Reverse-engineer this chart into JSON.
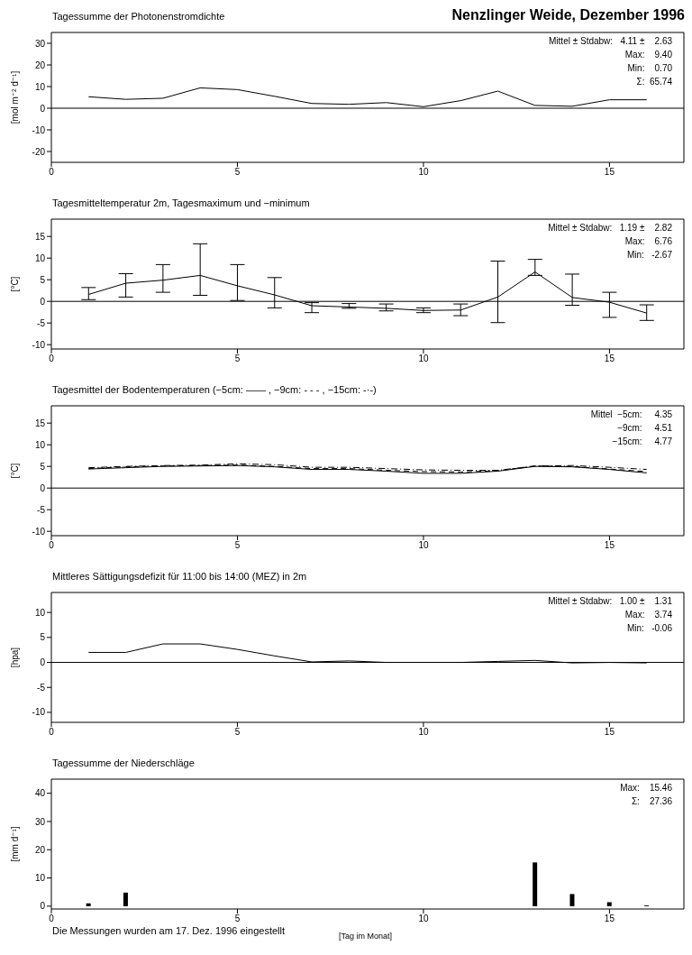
{
  "chart_data": [
    {
      "type": "line",
      "title": "Nenzlinger Weide, Dezember 1996",
      "subtitle": "Tagessumme der Photonenstromdichte",
      "ylabel": "[mol m⁻² d⁻¹]",
      "x": [
        1,
        2,
        3,
        4,
        5,
        6,
        7,
        8,
        9,
        10,
        11,
        12,
        13,
        14,
        15,
        16
      ],
      "series": [
        {
          "color": "#000000",
          "values": [
            5.3,
            4.1,
            4.6,
            9.4,
            8.6,
            5.5,
            2.2,
            1.8,
            2.6,
            0.7,
            3.5,
            7.9,
            1.3,
            0.9,
            3.9,
            3.9
          ]
        }
      ],
      "xlim": [
        0,
        17
      ],
      "xticks": [
        0,
        5,
        10,
        15
      ],
      "ylim": [
        -25,
        35
      ],
      "yticks": [
        -20,
        -10,
        0,
        10,
        20,
        30
      ],
      "ref_lines": [
        {
          "axis": "y",
          "value": 0,
          "color": "#000000"
        }
      ],
      "annotations": [
        "Mittel ± Stdabw:   4.11 ±    2.63",
        "Max:    9.40",
        "Min:    0.70",
        "Σ:  65.74"
      ]
    },
    {
      "type": "line",
      "title": "Tagesmitteltemperatur 2m, Tagesmaximum und −minimum",
      "ylabel": "[°C]",
      "x": [
        1,
        2,
        3,
        4,
        5,
        6,
        7,
        8,
        9,
        10,
        11,
        12,
        13,
        14,
        15,
        16
      ],
      "series": [
        {
          "color": "#000000",
          "values": [
            1.6,
            4.2,
            4.9,
            6.0,
            3.6,
            1.5,
            -1.0,
            -1.3,
            -1.6,
            -2.1,
            -2.0,
            1.0,
            6.8,
            0.9,
            -0.2,
            -2.7
          ],
          "errors": [
            [
              0.4,
              3.2
            ],
            [
              1.0,
              6.4
            ],
            [
              2.1,
              8.5
            ],
            [
              1.4,
              13.3
            ],
            [
              0.2,
              8.5
            ],
            [
              -1.5,
              5.5
            ],
            [
              -2.6,
              -0.3
            ],
            [
              -1.6,
              -0.5
            ],
            [
              -2.2,
              -0.6
            ],
            [
              -2.6,
              -1.5
            ],
            [
              -3.3,
              -0.6
            ],
            [
              -4.9,
              9.3
            ],
            [
              6.0,
              9.7
            ],
            [
              -0.9,
              6.3
            ],
            [
              -3.7,
              2.1
            ],
            [
              -4.4,
              -0.8
            ]
          ]
        }
      ],
      "xlim": [
        0,
        17
      ],
      "xticks": [
        0,
        5,
        10,
        15
      ],
      "ylim": [
        -11,
        19
      ],
      "yticks": [
        -10,
        -5,
        0,
        5,
        10,
        15
      ],
      "ref_lines": [
        {
          "axis": "y",
          "value": 0,
          "color": "#000000"
        }
      ],
      "annotations": [
        "Mittel ± Stdabw:   1.19 ±    2.82",
        "Max:    6.76",
        "Min:   -2.67"
      ]
    },
    {
      "type": "line",
      "title": "Tagesmittel der Bodentemperaturen (−5cm: —— , −9cm: - - - , −15cm: -·-)",
      "ylabel": "[°C]",
      "x": [
        1,
        2,
        3,
        4,
        5,
        6,
        7,
        8,
        9,
        10,
        11,
        12,
        13,
        14,
        15,
        16
      ],
      "series": [
        {
          "color": "#000000",
          "line_style": "solid",
          "values": [
            4.4,
            4.7,
            5.0,
            5.1,
            5.2,
            4.9,
            4.3,
            4.3,
            3.9,
            3.4,
            3.4,
            3.9,
            5.0,
            4.9,
            4.3,
            3.5
          ]
        },
        {
          "color": "#000000",
          "line_style": "dashed",
          "values": [
            4.5,
            4.9,
            5.1,
            5.2,
            5.3,
            5.0,
            4.5,
            4.5,
            4.1,
            3.8,
            3.7,
            4.0,
            5.1,
            5.0,
            4.4,
            3.8
          ]
        },
        {
          "color": "#000000",
          "line_style": "dashdot",
          "values": [
            4.7,
            5.0,
            5.2,
            5.3,
            5.6,
            5.4,
            4.8,
            4.8,
            4.5,
            4.2,
            4.1,
            4.1,
            5.1,
            5.2,
            4.8,
            4.3
          ]
        }
      ],
      "xlim": [
        0,
        17
      ],
      "xticks": [
        0,
        5,
        10,
        15
      ],
      "ylim": [
        -11,
        19
      ],
      "yticks": [
        -10,
        -5,
        0,
        5,
        10,
        15
      ],
      "ref_lines": [
        {
          "axis": "y",
          "value": 0,
          "color": "#000000"
        }
      ],
      "annotations": [
        "Mittel  −5cm:     4.35",
        "−9cm:     4.51",
        "−15cm:     4.77"
      ]
    },
    {
      "type": "line",
      "title": "Mittleres Sättigungsdefizit für 11:00 bis 14:00 (MEZ) in 2m",
      "ylabel": "[hpa]",
      "x": [
        1,
        2,
        3,
        4,
        5,
        6,
        7,
        8,
        9,
        10,
        11,
        12,
        13,
        14,
        15,
        16
      ],
      "series": [
        {
          "color": "#000000",
          "values": [
            2.0,
            2.0,
            3.7,
            3.7,
            2.6,
            1.3,
            0.1,
            0.3,
            0.0,
            0.0,
            0.0,
            0.2,
            0.4,
            -0.1,
            0.0,
            -0.1
          ]
        }
      ],
      "xlim": [
        0,
        17
      ],
      "xticks": [
        0,
        5,
        10,
        15
      ],
      "ylim": [
        -12,
        14
      ],
      "yticks": [
        -10,
        -5,
        0,
        5,
        10
      ],
      "ref_lines": [
        {
          "axis": "y",
          "value": 0,
          "color": "#000000"
        }
      ],
      "annotations": [
        "Mittel ± Stdabw:   1.00 ±    1.31",
        "Max:    3.74",
        "Min:   -0.06"
      ]
    },
    {
      "type": "bar",
      "title": "Tagessumme der Niederschläge",
      "ylabel": "[mm d⁻¹]",
      "xlabel": "[Tag im Monat]",
      "x": [
        1,
        2,
        3,
        4,
        5,
        6,
        7,
        8,
        9,
        10,
        11,
        12,
        13,
        14,
        15,
        16
      ],
      "series": [
        {
          "color": "#000000",
          "values": [
            1.0,
            4.8,
            0,
            0,
            0,
            0,
            0,
            0,
            0,
            0,
            0,
            0,
            15.5,
            4.3,
            1.4,
            0.3
          ]
        }
      ],
      "xlim": [
        0,
        17
      ],
      "xticks": [
        0,
        5,
        10,
        15
      ],
      "ylim": [
        -1,
        45
      ],
      "yticks": [
        0,
        10,
        20,
        30,
        40
      ],
      "annotations": [
        "Max:    15.46",
        "Σ:    27.36",
        "Die Messungen wurden am 17. Dez. 1996 eingestellt"
      ]
    }
  ]
}
